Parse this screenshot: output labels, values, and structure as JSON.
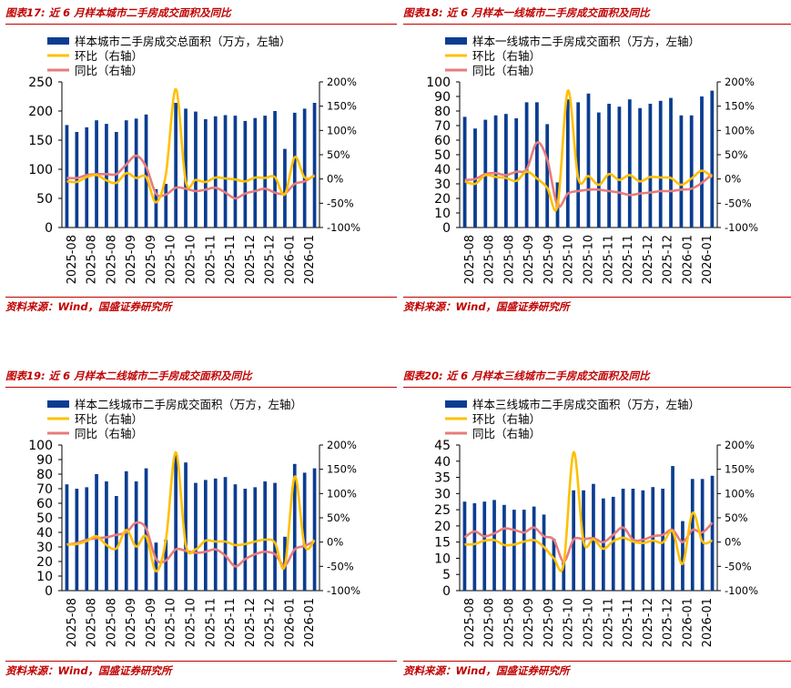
{
  "chart_data": [
    {
      "type": "bar",
      "figure_label": "图表17:",
      "title": "近 6 月样本城市二手房成交面积及同比",
      "source": "资料来源：Wind，国盛证券研究所",
      "legend": {
        "bar": "样本城市二手房成交总面积（万方，左轴）",
        "hb": "环比（右轴）",
        "tb": "同比（右轴）"
      },
      "colors": {
        "bar": "#0b3d91",
        "hb": "#ffc000",
        "tb": "#e77c7c"
      },
      "ylim": [
        0,
        250
      ],
      "yticks": [
        "0",
        "50",
        "100",
        "150",
        "200",
        "250"
      ],
      "y2lim": [
        -100,
        200
      ],
      "y2ticks": [
        "-100%",
        "-50%",
        "0%",
        "50%",
        "100%",
        "150%",
        "200%"
      ],
      "xticklabels": [
        "2025-08",
        "2025-08",
        "2025-08",
        "2025-09",
        "2025-09",
        "2025-10",
        "2025-10",
        "2025-11",
        "2025-11",
        "2025-12",
        "2025-12",
        "2026-01",
        "2026-01"
      ],
      "values": [
        176,
        164,
        172,
        184,
        178,
        164,
        184,
        187,
        194,
        66,
        75,
        214,
        204,
        199,
        186,
        191,
        193,
        192,
        183,
        188,
        192,
        200,
        135,
        197,
        204,
        214
      ],
      "mom": [
        -5,
        -6,
        4,
        8,
        -3,
        -8,
        12,
        2,
        4,
        -48,
        10,
        185,
        -5,
        -2,
        -6,
        3,
        1,
        -1,
        -5,
        3,
        2,
        4,
        -32,
        45,
        3,
        6
      ],
      "yoy": [
        2,
        2,
        8,
        10,
        10,
        10,
        30,
        48,
        25,
        -30,
        -32,
        -18,
        -20,
        -25,
        -22,
        -18,
        -28,
        -40,
        -30,
        -25,
        -20,
        -28,
        -30,
        -10,
        -5,
        8
      ]
    },
    {
      "type": "bar",
      "figure_label": "图表18:",
      "title": "近 6 月样本一线城市二手房成交面积及同比",
      "source": "资料来源：Wind，国盛证券研究所",
      "legend": {
        "bar": "样本一线城市二手房成交面积（万方，左轴）",
        "hb": "环比（右轴）",
        "tb": "同比（右轴）"
      },
      "colors": {
        "bar": "#0b3d91",
        "hb": "#ffc000",
        "tb": "#e77c7c"
      },
      "ylim": [
        0,
        100
      ],
      "yticks": [
        "0",
        "10",
        "20",
        "30",
        "40",
        "50",
        "60",
        "70",
        "80",
        "90",
        "100"
      ],
      "y2lim": [
        -100,
        200
      ],
      "y2ticks": [
        "-100%",
        "-50%",
        "0%",
        "50%",
        "100%",
        "150%",
        "200%"
      ],
      "xticklabels": [
        "2025-08",
        "2025-08",
        "2025-08",
        "2025-09",
        "2025-09",
        "2025-10",
        "2025-10",
        "2025-11",
        "2025-11",
        "2025-12",
        "2025-12",
        "2026-01",
        "2026-01"
      ],
      "values": [
        76,
        68,
        74,
        77,
        78,
        75,
        86,
        86,
        71,
        31,
        88,
        86,
        92,
        79,
        85,
        83,
        88,
        82,
        85,
        87,
        89,
        77,
        77,
        90,
        94
      ],
      "mom": [
        -5,
        -10,
        8,
        4,
        2,
        -4,
        15,
        1,
        -18,
        -55,
        182,
        2,
        6,
        -12,
        10,
        -2,
        8,
        -5,
        4,
        3,
        2,
        -12,
        1,
        17,
        4
      ],
      "yoy": [
        -2,
        0,
        10,
        12,
        8,
        15,
        20,
        75,
        40,
        -55,
        -30,
        -25,
        -22,
        -22,
        -25,
        -28,
        -33,
        -30,
        -28,
        -25,
        -25,
        -22,
        -20,
        -8,
        10
      ]
    },
    {
      "type": "bar",
      "figure_label": "图表19:",
      "title": "近 6 月样本二线城市二手房成交面积及同比",
      "source": "资料来源：Wind，国盛证券研究所",
      "legend": {
        "bar": "样本二线城市二手房成交面积（万方，左轴）",
        "hb": "环比（右轴）",
        "tb": "同比（右轴）"
      },
      "colors": {
        "bar": "#0b3d91",
        "hb": "#ffc000",
        "tb": "#e77c7c"
      },
      "ylim": [
        0,
        100
      ],
      "yticks": [
        "0",
        "10",
        "20",
        "30",
        "40",
        "50",
        "60",
        "70",
        "80",
        "90",
        "100"
      ],
      "y2lim": [
        -100,
        200
      ],
      "y2ticks": [
        "-100%",
        "-50%",
        "0%",
        "50%",
        "100%",
        "150%",
        "200%"
      ],
      "xticklabels": [
        "2025-08",
        "2025-08",
        "2025-08",
        "2025-09",
        "2025-09",
        "2025-10",
        "2025-10",
        "2025-11",
        "2025-11",
        "2025-12",
        "2025-12",
        "2026-01",
        "2026-01"
      ],
      "values": [
        73,
        70,
        71,
        80,
        75,
        65,
        82,
        75,
        84,
        33,
        35,
        93,
        88,
        74,
        76,
        77,
        78,
        73,
        70,
        71,
        75,
        74,
        37,
        87,
        81,
        84
      ],
      "mom": [
        -5,
        -4,
        2,
        12,
        -6,
        -13,
        25,
        -9,
        12,
        -60,
        5,
        185,
        -5,
        -15,
        3,
        1,
        1,
        -6,
        -4,
        1,
        5,
        -1,
        -50,
        135,
        -7,
        4
      ],
      "yoy": [
        -5,
        -2,
        5,
        8,
        10,
        15,
        20,
        40,
        28,
        -35,
        -38,
        -15,
        -18,
        -22,
        -20,
        -15,
        -28,
        -50,
        -35,
        -25,
        -20,
        -25,
        -48,
        -15,
        -8,
        2
      ]
    },
    {
      "type": "bar",
      "figure_label": "图表20:",
      "title": "近 6 月样本三线城市二手房成交面积及同比",
      "source": "资料来源：Wind，国盛证券研究所",
      "legend": {
        "bar": "样本三线城市二手房成交面积（万方，左轴）",
        "hb": "环比（右轴）",
        "tb": "同比（右轴）"
      },
      "colors": {
        "bar": "#0b3d91",
        "hb": "#ffc000",
        "tb": "#e77c7c"
      },
      "ylim": [
        0,
        45
      ],
      "yticks": [
        "0",
        "5",
        "10",
        "15",
        "20",
        "25",
        "30",
        "35",
        "40",
        "45"
      ],
      "y2lim": [
        -100,
        200
      ],
      "y2ticks": [
        "-100%",
        "-50%",
        "0%",
        "50%",
        "100%",
        "150%",
        "200%"
      ],
      "xticklabels": [
        "2025-08",
        "2025-08",
        "2025-08",
        "2025-09",
        "2025-09",
        "2025-10",
        "2025-10",
        "2025-11",
        "2025-11",
        "2025-12",
        "2025-12",
        "2026-01",
        "2026-01"
      ],
      "values": [
        27.5,
        27,
        27.5,
        28,
        26.5,
        25,
        25,
        26,
        23.5,
        16,
        9,
        31,
        31,
        33,
        28.5,
        29,
        31.5,
        31.5,
        31,
        32,
        31.5,
        38.5,
        21.5,
        34.5,
        34.5,
        35.5
      ],
      "mom": [
        -5,
        -4,
        3,
        4,
        -6,
        -5,
        1,
        4,
        -10,
        -33,
        -45,
        185,
        1,
        6,
        -14,
        2,
        9,
        1,
        -2,
        3,
        -1,
        22,
        -45,
        60,
        1,
        3
      ],
      "yoy": [
        10,
        22,
        12,
        18,
        28,
        25,
        20,
        30,
        12,
        5,
        -40,
        5,
        6,
        8,
        0,
        15,
        30,
        5,
        5,
        12,
        15,
        25,
        0,
        25,
        20,
        40
      ]
    }
  ]
}
